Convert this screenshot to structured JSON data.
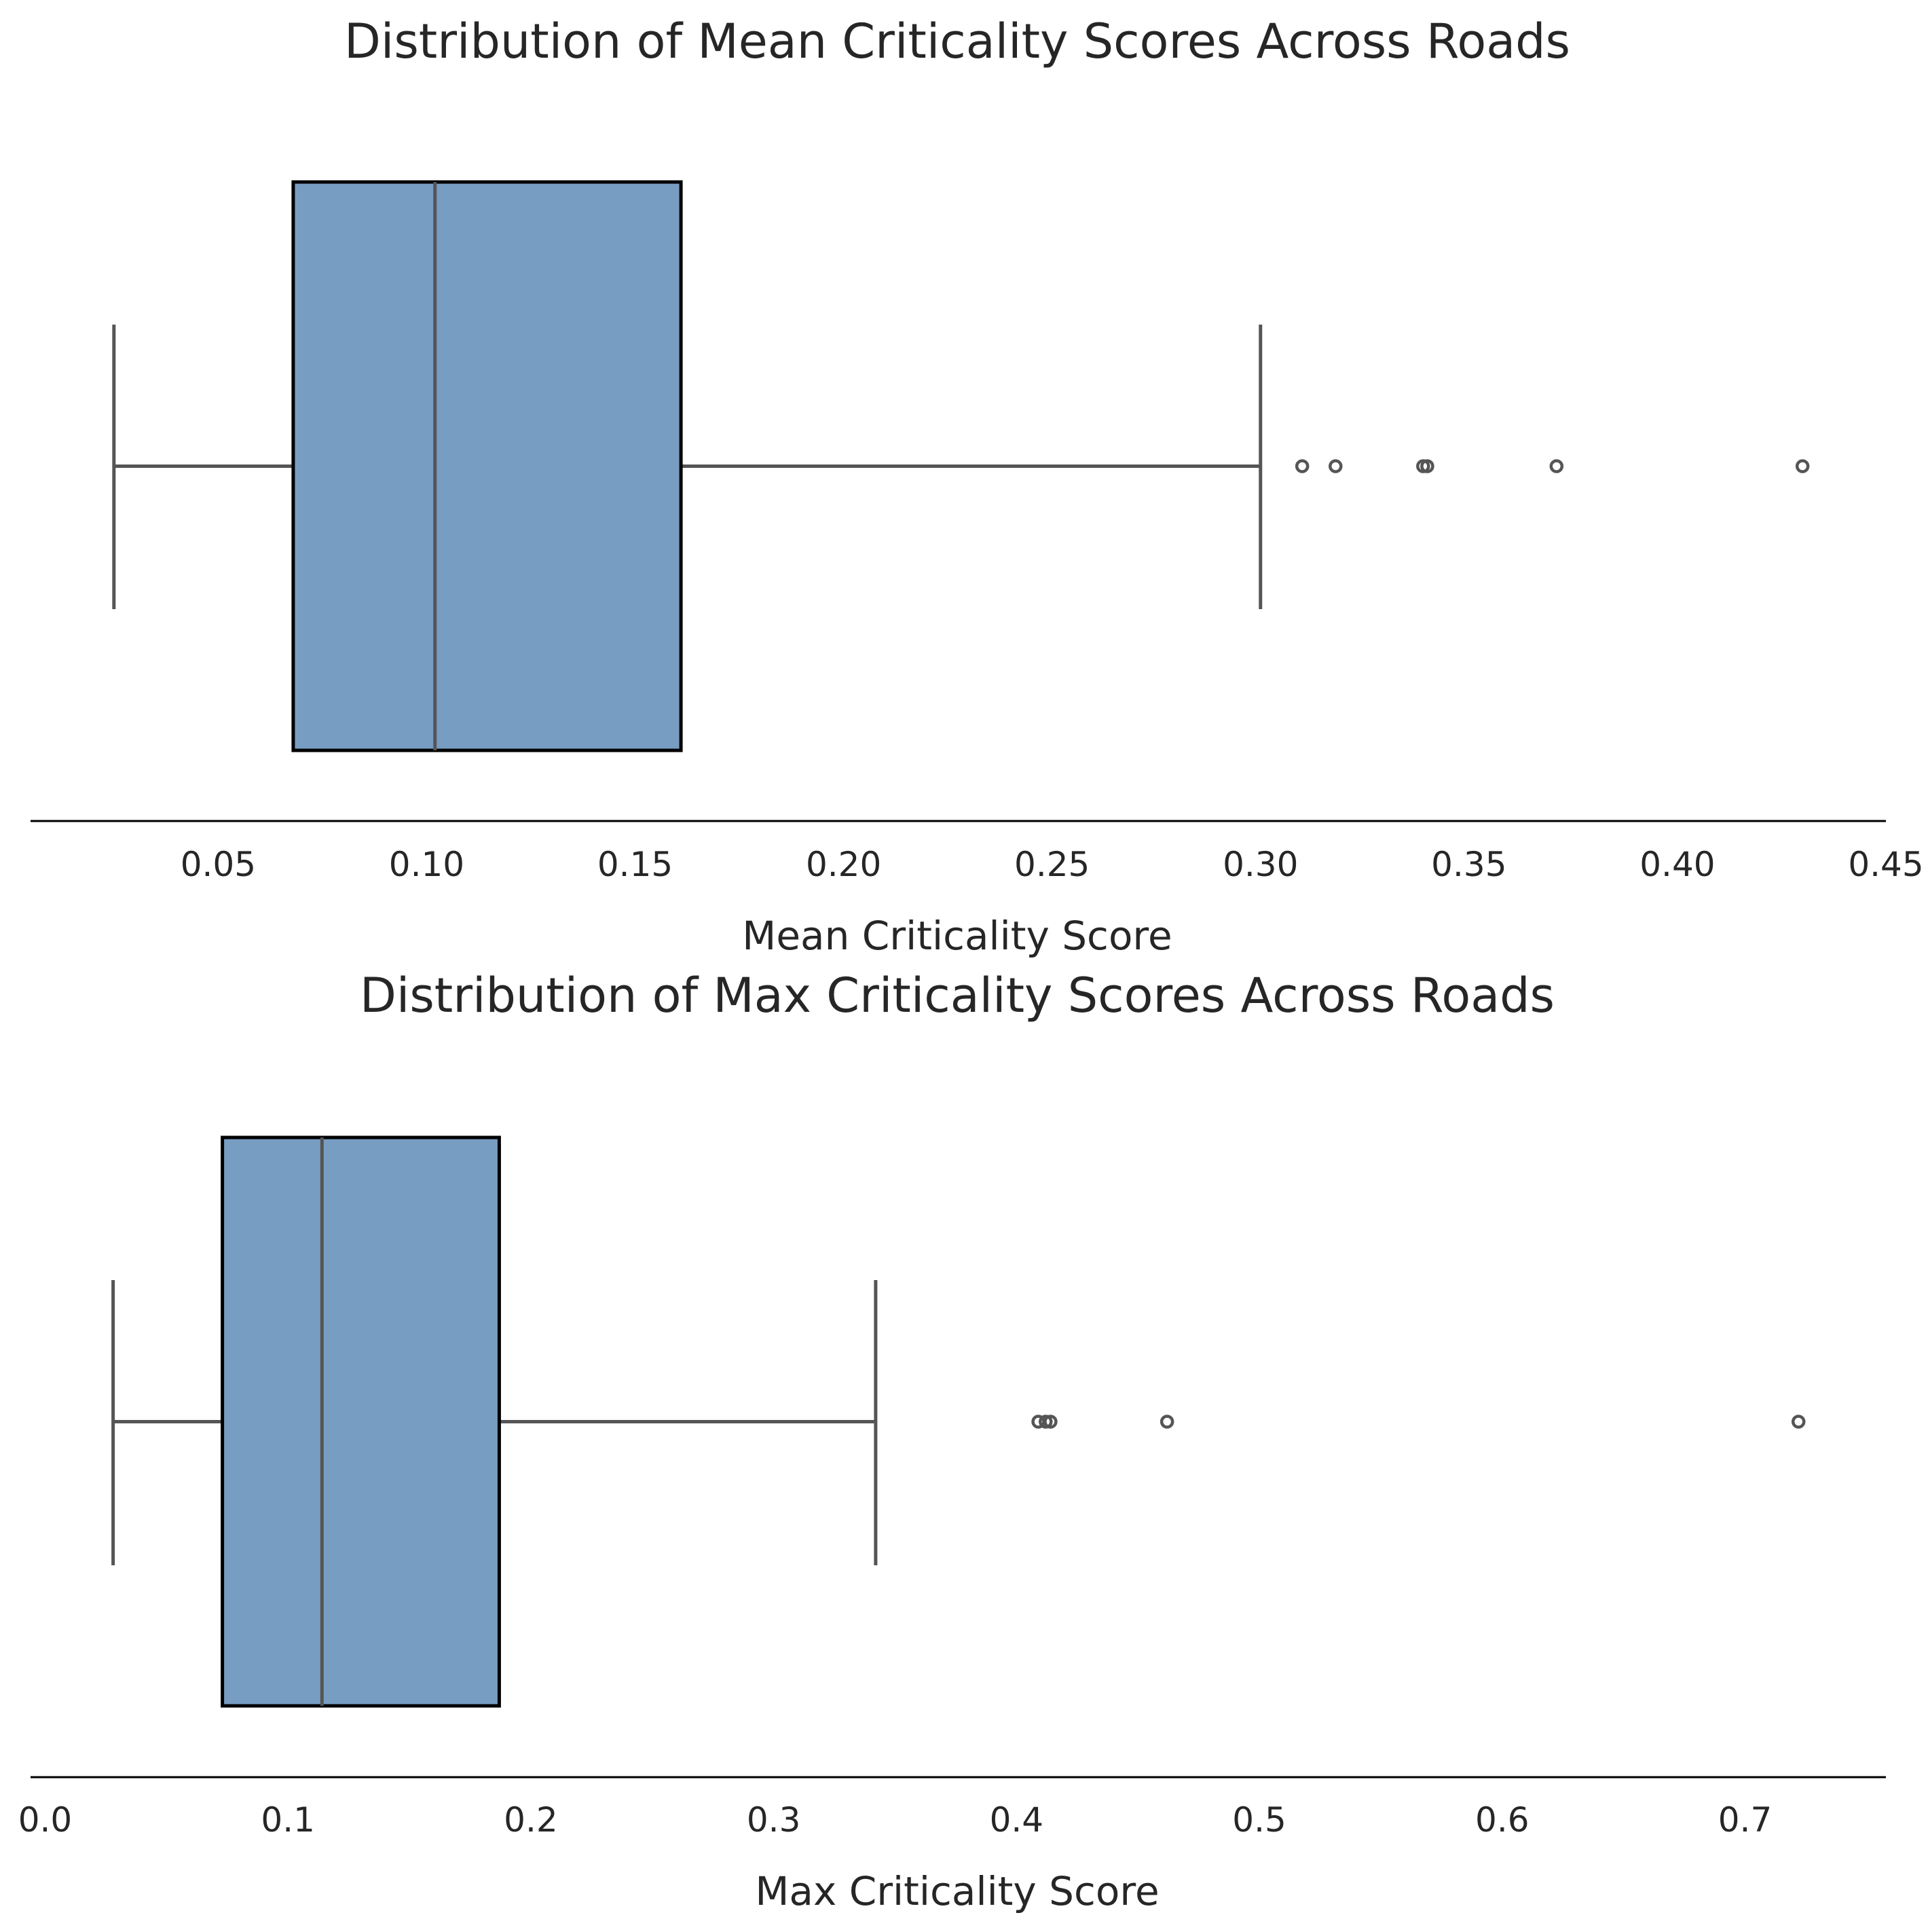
{
  "colors": {
    "box_fill": "#789DC2",
    "box_edge": "#000000",
    "line": "#555555",
    "axis": "#000000",
    "text": "#262626",
    "background": "#ffffff"
  },
  "chart_data": [
    {
      "type": "box",
      "orientation": "horizontal",
      "title": "Distribution of Mean Criticality Scores Across Roads",
      "xlabel": "Mean Criticality Score",
      "ylabel": "",
      "xlim": [
        0.005,
        0.45
      ],
      "xticks": [
        0.05,
        0.1,
        0.15,
        0.2,
        0.25,
        0.3,
        0.35,
        0.4,
        0.45
      ],
      "xtick_labels": [
        "0.05",
        "0.10",
        "0.15",
        "0.20",
        "0.25",
        "0.30",
        "0.35",
        "0.40",
        "0.45"
      ],
      "grid": false,
      "stats": {
        "whisker_low": 0.025,
        "q1": 0.068,
        "median": 0.102,
        "q3": 0.161,
        "whisker_high": 0.3
      },
      "outliers": [
        0.31,
        0.318,
        0.339,
        0.34,
        0.371,
        0.43
      ]
    },
    {
      "type": "box",
      "orientation": "horizontal",
      "title": "Distribution of Max Criticality Scores Across Roads",
      "xlabel": "Max Criticality Score",
      "ylabel": "",
      "xlim": [
        -0.006,
        0.758
      ],
      "xticks": [
        0.0,
        0.1,
        0.2,
        0.3,
        0.4,
        0.5,
        0.6,
        0.7
      ],
      "xtick_labels": [
        "0.0",
        "0.1",
        "0.2",
        "0.3",
        "0.4",
        "0.5",
        "0.6",
        "0.7"
      ],
      "grid": false,
      "stats": {
        "whisker_low": 0.028,
        "q1": 0.073,
        "median": 0.114,
        "q3": 0.187,
        "whisker_high": 0.342
      },
      "outliers": [
        0.409,
        0.412,
        0.414,
        0.462,
        0.722
      ]
    }
  ]
}
